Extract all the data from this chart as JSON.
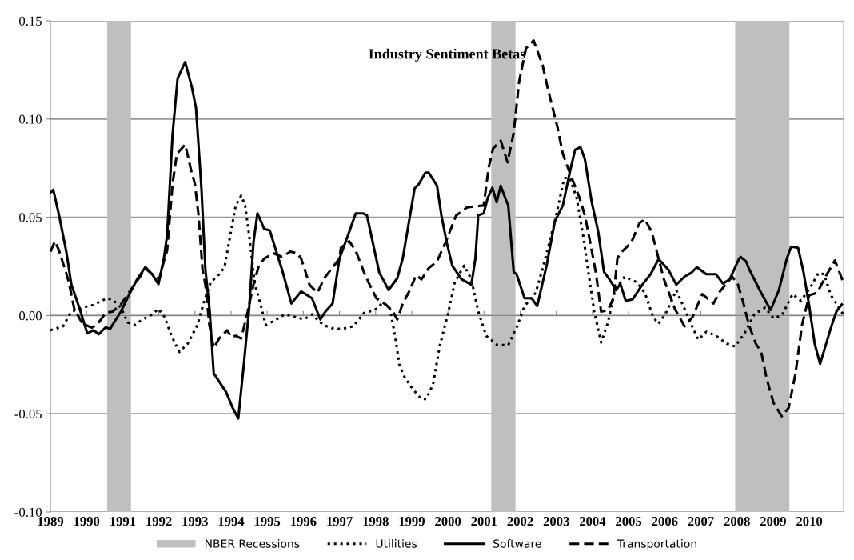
{
  "chart_data": {
    "type": "line",
    "title": "Industry Sentiment Betas",
    "xlim": [
      1989,
      2010.95
    ],
    "xticks": [
      1989,
      1990,
      1991,
      1992,
      1993,
      1994,
      1995,
      1996,
      1997,
      1998,
      1999,
      2000,
      2001,
      2002,
      2003,
      2004,
      2005,
      2006,
      2007,
      2008,
      2009,
      2010
    ],
    "ylim": [
      -0.1,
      0.15
    ],
    "yticks": [
      {
        "value": -0.1,
        "label": "-0.10"
      },
      {
        "value": -0.05,
        "label": "-0.05"
      },
      {
        "value": 0,
        "label": "0.00"
      },
      {
        "value": 0.05,
        "label": "0.05"
      },
      {
        "value": 0.1,
        "label": "0.10"
      },
      {
        "value": 0.15,
        "label": "0.15"
      }
    ],
    "grid": "y",
    "legend": "bottom",
    "marker": "none",
    "bands": [
      {
        "axis": "x",
        "from": 1990.57,
        "to": 1991.23,
        "label": "NBER Recessions",
        "color": "#bfbfbf"
      },
      {
        "axis": "x",
        "from": 2001.2,
        "to": 2001.87,
        "color": "#bfbfbf"
      },
      {
        "axis": "x",
        "from": 2007.95,
        "to": 2009.45,
        "color": "#bfbfbf"
      }
    ],
    "series": [
      {
        "name": "Utilities",
        "color": "#000000",
        "line_style": "dotted",
        "x": [
          1989.0,
          1989.35,
          1989.58,
          1989.89,
          1990.19,
          1990.57,
          1990.76,
          1990.95,
          1991.14,
          1991.33,
          1991.55,
          1991.82,
          1991.99,
          1992.16,
          1992.35,
          1992.57,
          1992.8,
          1993.07,
          1993.26,
          1993.44,
          1993.67,
          1993.82,
          1993.94,
          1994.13,
          1994.28,
          1994.39,
          1994.5,
          1994.66,
          1994.81,
          1994.96,
          1995.18,
          1995.49,
          1995.79,
          1996.02,
          1996.24,
          1996.55,
          1996.85,
          1997.08,
          1997.38,
          1997.68,
          1997.98,
          1998.21,
          1998.4,
          1998.55,
          1998.66,
          1998.82,
          1999.04,
          1999.27,
          1999.4,
          1999.59,
          1999.77,
          2000.0,
          2000.19,
          2000.45,
          2000.65,
          2000.84,
          2001.06,
          2001.37,
          2001.67,
          2001.9,
          2002.12,
          2002.43,
          2002.62,
          2002.96,
          2003.22,
          2003.37,
          2003.56,
          2003.75,
          2003.86,
          2004.05,
          2004.24,
          2004.43,
          2004.62,
          2004.89,
          2005.22,
          2005.45,
          2005.68,
          2005.83,
          2006.06,
          2006.32,
          2006.55,
          2006.74,
          2006.93,
          2007.15,
          2007.42,
          2007.72,
          2007.95,
          2008.21,
          2008.48,
          2008.78,
          2009.01,
          2009.24,
          2009.54,
          2009.77,
          2010.03,
          2010.26,
          2010.41,
          2010.6,
          2010.94
        ],
        "values": [
          -0.0075,
          -0.0055,
          0.002,
          0.004,
          0.0054,
          0.0088,
          0.0075,
          0.004,
          -0.0035,
          -0.0048,
          -0.002,
          0.0006,
          0.0034,
          -0.0008,
          -0.0103,
          -0.0185,
          -0.0143,
          -0.0048,
          0.0075,
          0.017,
          0.021,
          0.0246,
          0.037,
          0.056,
          0.061,
          0.056,
          0.041,
          0.0157,
          0.0061,
          -0.0048,
          -0.0028,
          0.0006,
          -0.0008,
          -0.002,
          0.0006,
          -0.0048,
          -0.0068,
          -0.0068,
          -0.0055,
          0.0013,
          0.0028,
          0.0067,
          0.0034,
          -0.0117,
          -0.0254,
          -0.032,
          -0.0377,
          -0.0425,
          -0.0425,
          -0.035,
          -0.0158,
          0.0006,
          0.017,
          0.0254,
          0.0184,
          0.002,
          -0.0103,
          -0.015,
          -0.015,
          -0.0062,
          0.0048,
          0.0116,
          0.0239,
          0.048,
          0.07,
          0.07,
          0.06,
          0.04,
          0.0254,
          0.002,
          -0.0137,
          -0.0035,
          0.0129,
          0.0198,
          0.017,
          0.0116,
          -0.0008,
          -0.0042,
          0.002,
          0.0129,
          0.0034,
          -0.0048,
          -0.0123,
          -0.0083,
          -0.0103,
          -0.0143,
          -0.0158,
          -0.009,
          0.0006,
          0.004,
          -0.0014,
          0.0,
          0.0109,
          0.0075,
          0.0143,
          0.0218,
          0.021,
          0.0103,
          0.0006
        ]
      },
      {
        "name": "Software",
        "color": "#000000",
        "line_style": "solid",
        "x": [
          1989.0,
          1989.08,
          1989.24,
          1989.44,
          1989.58,
          1989.81,
          1990.02,
          1990.19,
          1990.34,
          1990.53,
          1990.65,
          1990.95,
          1991.17,
          1991.4,
          1991.63,
          1991.82,
          1991.99,
          1992.14,
          1992.23,
          1992.38,
          1992.52,
          1992.73,
          1992.91,
          1993.03,
          1993.18,
          1993.29,
          1993.41,
          1993.52,
          1993.67,
          1993.86,
          1994.05,
          1994.2,
          1994.35,
          1994.5,
          1994.62,
          1994.73,
          1994.92,
          1995.07,
          1995.41,
          1995.67,
          1995.94,
          1996.24,
          1996.47,
          1996.61,
          1996.81,
          1997.0,
          1997.27,
          1997.45,
          1997.65,
          1997.76,
          1998.1,
          1998.36,
          1998.6,
          1998.75,
          1999.08,
          1999.2,
          1999.38,
          1999.47,
          1999.7,
          1999.82,
          1999.97,
          2000.12,
          2000.38,
          2000.65,
          2000.76,
          2000.84,
          2000.99,
          2001.1,
          2001.23,
          2001.35,
          2001.46,
          2001.6,
          2001.67,
          2001.82,
          2001.9,
          2002.12,
          2002.32,
          2002.47,
          2002.73,
          2002.96,
          2003.18,
          2003.37,
          2003.52,
          2003.67,
          2003.79,
          2003.98,
          2004.16,
          2004.32,
          2004.47,
          2004.66,
          2004.77,
          2004.92,
          2005.11,
          2005.38,
          2005.61,
          2005.83,
          2006.1,
          2006.32,
          2006.55,
          2006.74,
          2006.89,
          2007.15,
          2007.42,
          2007.61,
          2007.8,
          2008.06,
          2008.1,
          2008.25,
          2008.33,
          2008.63,
          2008.93,
          2009.16,
          2009.38,
          2009.5,
          2009.69,
          2009.84,
          2010.0,
          2010.15,
          2010.3,
          2010.6,
          2010.75,
          2010.9
        ],
        "values": [
          0.0625,
          0.064,
          0.051,
          0.0325,
          0.0157,
          0.0034,
          -0.0091,
          -0.0075,
          -0.0095,
          -0.006,
          -0.0068,
          0.002,
          0.0103,
          0.0184,
          0.0246,
          0.021,
          0.016,
          0.029,
          0.041,
          0.092,
          0.1206,
          0.129,
          0.1166,
          0.1056,
          0.0647,
          0.0234,
          0.002,
          -0.0294,
          -0.0336,
          -0.0389,
          -0.0472,
          -0.0524,
          -0.0254,
          0.0034,
          0.037,
          0.052,
          0.044,
          0.0433,
          0.0234,
          0.0061,
          0.0123,
          0.0088,
          -0.002,
          0.002,
          0.0061,
          0.029,
          0.0426,
          0.052,
          0.052,
          0.051,
          0.022,
          0.013,
          0.019,
          0.029,
          0.0647,
          0.067,
          0.0727,
          0.0727,
          0.066,
          0.051,
          0.037,
          0.0254,
          0.0184,
          0.0157,
          0.029,
          0.051,
          0.052,
          0.0598,
          0.065,
          0.0577,
          0.066,
          0.0591,
          0.056,
          0.0222,
          0.021,
          0.0088,
          0.0088,
          0.0048,
          0.0254,
          0.048,
          0.056,
          0.0727,
          0.0844,
          0.0857,
          0.0796,
          0.0577,
          0.0426,
          0.0222,
          0.0184,
          0.0129,
          0.0163,
          0.0075,
          0.0082,
          0.0157,
          0.021,
          0.0287,
          0.0234,
          0.0157,
          0.0198,
          0.0218,
          0.0246,
          0.021,
          0.021,
          0.0163,
          0.0184,
          0.029,
          0.0298,
          0.0276,
          0.0239,
          0.0129,
          0.0028,
          0.0129,
          0.029,
          0.0351,
          0.0345,
          0.0222,
          0.0048,
          -0.0143,
          -0.0246,
          -0.0062,
          0.002,
          0.0056
        ]
      },
      {
        "name": "Transportation",
        "color": "#000000",
        "line_style": "dashed",
        "x": [
          1989.0,
          1989.13,
          1989.24,
          1989.43,
          1989.51,
          1989.66,
          1989.89,
          1990.15,
          1990.34,
          1990.53,
          1990.72,
          1990.95,
          1991.17,
          1991.48,
          1991.63,
          1991.85,
          1992.01,
          1992.16,
          1992.23,
          1992.38,
          1992.5,
          1992.73,
          1992.91,
          1993.0,
          1993.1,
          1993.21,
          1993.29,
          1993.4,
          1993.52,
          1993.67,
          1993.89,
          1994.01,
          1994.13,
          1994.28,
          1994.46,
          1994.62,
          1994.77,
          1994.92,
          1995.18,
          1995.41,
          1995.64,
          1995.83,
          1995.94,
          1996.06,
          1996.17,
          1996.39,
          1996.58,
          1996.85,
          1997.0,
          1997.04,
          1997.27,
          1997.45,
          1997.68,
          1997.8,
          1998.02,
          1998.28,
          1998.48,
          1998.6,
          1998.75,
          1998.93,
          1999.12,
          1999.27,
          1999.46,
          1999.7,
          1999.93,
          2000.23,
          2000.53,
          2000.76,
          2000.99,
          2001.13,
          2001.25,
          2001.46,
          2001.65,
          2001.82,
          2001.97,
          2002.16,
          2002.37,
          2002.62,
          2002.77,
          2003.03,
          2003.18,
          2003.37,
          2003.64,
          2003.79,
          2003.94,
          2004.09,
          2004.24,
          2004.43,
          2004.58,
          2004.69,
          2004.77,
          2005.07,
          2005.3,
          2005.45,
          2005.64,
          2005.83,
          2005.98,
          2006.28,
          2006.55,
          2006.77,
          2007.04,
          2007.35,
          2007.53,
          2007.87,
          2008.03,
          2008.18,
          2008.33,
          2008.52,
          2008.67,
          2008.82,
          2009.01,
          2009.24,
          2009.43,
          2009.62,
          2009.8,
          2010.0,
          2010.22,
          2010.45,
          2010.71,
          2010.94
        ],
        "values": [
          0.0325,
          0.0378,
          0.033,
          0.022,
          0.017,
          0.0034,
          -0.0042,
          -0.0062,
          -0.0035,
          0.0013,
          0.002,
          0.0056,
          0.0116,
          0.0198,
          0.0239,
          0.0205,
          0.0184,
          0.029,
          0.033,
          0.067,
          0.0823,
          0.087,
          0.0727,
          0.067,
          0.051,
          0.0234,
          0.0157,
          -0.0048,
          -0.0165,
          -0.0117,
          -0.0075,
          -0.011,
          -0.0103,
          -0.0117,
          0.002,
          0.0157,
          0.0254,
          0.029,
          0.0317,
          0.0298,
          0.0325,
          0.0317,
          0.029,
          0.0222,
          0.0157,
          0.0116,
          0.019,
          0.0254,
          0.029,
          0.0345,
          0.0378,
          0.033,
          0.022,
          0.017,
          0.0088,
          0.0056,
          0.002,
          -0.002,
          0.0061,
          0.0123,
          0.0205,
          0.0184,
          0.0239,
          0.0276,
          0.037,
          0.051,
          0.055,
          0.0556,
          0.056,
          0.0755,
          0.085,
          0.089,
          0.078,
          0.093,
          0.119,
          0.136,
          0.14,
          0.1275,
          0.115,
          0.096,
          0.0823,
          0.0727,
          0.06,
          0.051,
          0.037,
          0.0222,
          0.002,
          0.0028,
          0.0088,
          0.029,
          0.0317,
          0.037,
          0.047,
          0.049,
          0.0426,
          0.029,
          0.0184,
          0.0034,
          -0.0055,
          -0.0008,
          0.0109,
          0.0061,
          0.0123,
          0.0198,
          0.0157,
          0.0061,
          -0.0048,
          -0.0143,
          -0.0185,
          -0.032,
          -0.0444,
          -0.0513,
          -0.047,
          -0.0294,
          -0.0048,
          0.0103,
          0.0116,
          0.0198,
          0.028,
          0.017
        ]
      }
    ]
  }
}
